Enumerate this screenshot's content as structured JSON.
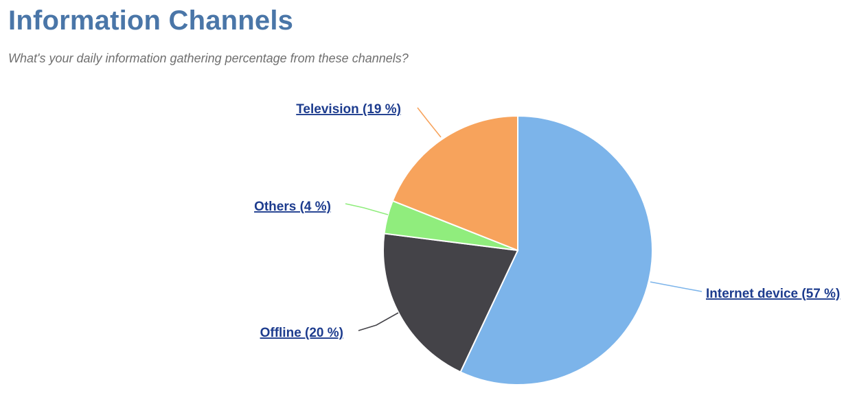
{
  "chart_data": {
    "type": "pie",
    "title": "Information Channels",
    "subtitle": "What's your daily information gathering percentage from these channels?",
    "slices": [
      {
        "name": "Internet device",
        "value": 57,
        "label": "Internet device (57 %)",
        "color": "#7cb4ea"
      },
      {
        "name": "Offline",
        "value": 20,
        "label": "Offline (20 %)",
        "color": "#444348"
      },
      {
        "name": "Others",
        "value": 4,
        "label": "Others (4 %)",
        "color": "#90ed7d"
      },
      {
        "name": "Television",
        "value": 19,
        "label": "Television (19 %)",
        "color": "#f7a35c"
      }
    ],
    "label_color": "#1d3c8e",
    "title_color": "#4a76a8"
  }
}
